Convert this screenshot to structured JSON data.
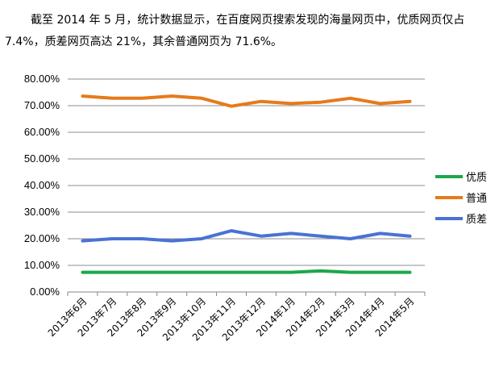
{
  "intro": {
    "line1": "截至 2014 年 5 月，统计数据显示，在百度网页搜索发现的海量网页中，优质网页仅占",
    "line2": "7.4%，质差网页高达 21%，其余普通网页为 71.6%。"
  },
  "chart_data": {
    "type": "line",
    "categories": [
      "2013年6月",
      "2013年7月",
      "2013年8月",
      "2013年9月",
      "2013年10月",
      "2013年11月",
      "2013年12月",
      "2014年1月",
      "2014年2月",
      "2014年3月",
      "2014年4月",
      "2014年5月"
    ],
    "series": [
      {
        "name": "优质",
        "color": "#1ca84a",
        "values": [
          7.4,
          7.4,
          7.4,
          7.4,
          7.4,
          7.4,
          7.4,
          7.4,
          7.9,
          7.4,
          7.4,
          7.4
        ]
      },
      {
        "name": "普通",
        "color": "#e67a1a",
        "values": [
          73.6,
          72.8,
          72.8,
          73.6,
          72.8,
          69.8,
          71.6,
          70.8,
          71.3,
          72.8,
          70.8,
          71.6
        ]
      },
      {
        "name": "质差",
        "color": "#4a72d4",
        "values": [
          19.2,
          20.0,
          20.0,
          19.2,
          20.0,
          23.0,
          21.0,
          22.0,
          21.0,
          20.0,
          22.0,
          21.0
        ]
      }
    ],
    "yticks": [
      "0.00%",
      "10.00%",
      "20.00%",
      "30.00%",
      "40.00%",
      "50.00%",
      "60.00%",
      "70.00%",
      "80.00%"
    ],
    "ylim": [
      0,
      80
    ],
    "grid": true,
    "legend": "right"
  }
}
